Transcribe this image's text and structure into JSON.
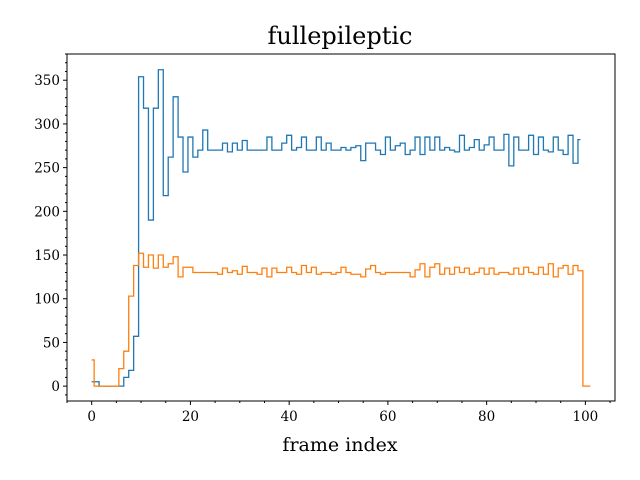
{
  "chart_data": {
    "type": "line",
    "drawstyle": "steps-mid",
    "title": "fullepileptic",
    "xlabel": "frame index",
    "ylabel": "",
    "xlim": [
      -5,
      106
    ],
    "ylim": [
      -17,
      380
    ],
    "xticks": [
      0,
      20,
      40,
      60,
      80,
      100
    ],
    "yticks": [
      0,
      50,
      100,
      150,
      200,
      250,
      300,
      350
    ],
    "x_minor_step": 5,
    "y_minor_step": 10,
    "grid": false,
    "legend": "none",
    "series": [
      {
        "color": "#1f77b4",
        "x_start": 0,
        "values": [
          5,
          5,
          0,
          0,
          0,
          0,
          0,
          10,
          18,
          57,
          354,
          318,
          190,
          318,
          362,
          218,
          262,
          331,
          285,
          245,
          285,
          262,
          270,
          293,
          270,
          270,
          270,
          278,
          268,
          278,
          270,
          281,
          270,
          270,
          270,
          270,
          285,
          270,
          270,
          278,
          287,
          270,
          273,
          285,
          270,
          270,
          285,
          270,
          278,
          270,
          270,
          273,
          270,
          273,
          275,
          258,
          278,
          278,
          270,
          265,
          285,
          270,
          275,
          278,
          265,
          270,
          285,
          265,
          285,
          270,
          285,
          270,
          273,
          270,
          268,
          287,
          270,
          273,
          282,
          270,
          276,
          285,
          270,
          270,
          288,
          252,
          285,
          270,
          270,
          287,
          265,
          285,
          270,
          268,
          285,
          270,
          265,
          287,
          255,
          282
        ]
      },
      {
        "color": "#ff7f0e",
        "x_start": 0,
        "values": [
          30,
          0,
          0,
          0,
          0,
          0,
          20,
          40,
          103,
          138,
          152,
          136,
          150,
          135,
          150,
          136,
          140,
          148,
          125,
          136,
          136,
          130,
          130,
          130,
          130,
          130,
          128,
          135,
          130,
          132,
          128,
          137,
          130,
          130,
          128,
          135,
          125,
          135,
          130,
          130,
          136,
          130,
          128,
          138,
          130,
          136,
          128,
          130,
          130,
          128,
          130,
          136,
          130,
          128,
          128,
          125,
          134,
          138,
          130,
          128,
          130,
          130,
          130,
          130,
          130,
          125,
          133,
          140,
          125,
          136,
          140,
          128,
          135,
          128,
          136,
          130,
          135,
          128,
          130,
          135,
          128,
          135,
          128,
          130,
          130,
          128,
          135,
          128,
          136,
          130,
          128,
          136,
          128,
          140,
          125,
          135,
          138,
          128,
          138,
          132,
          0,
          0
        ]
      }
    ]
  }
}
